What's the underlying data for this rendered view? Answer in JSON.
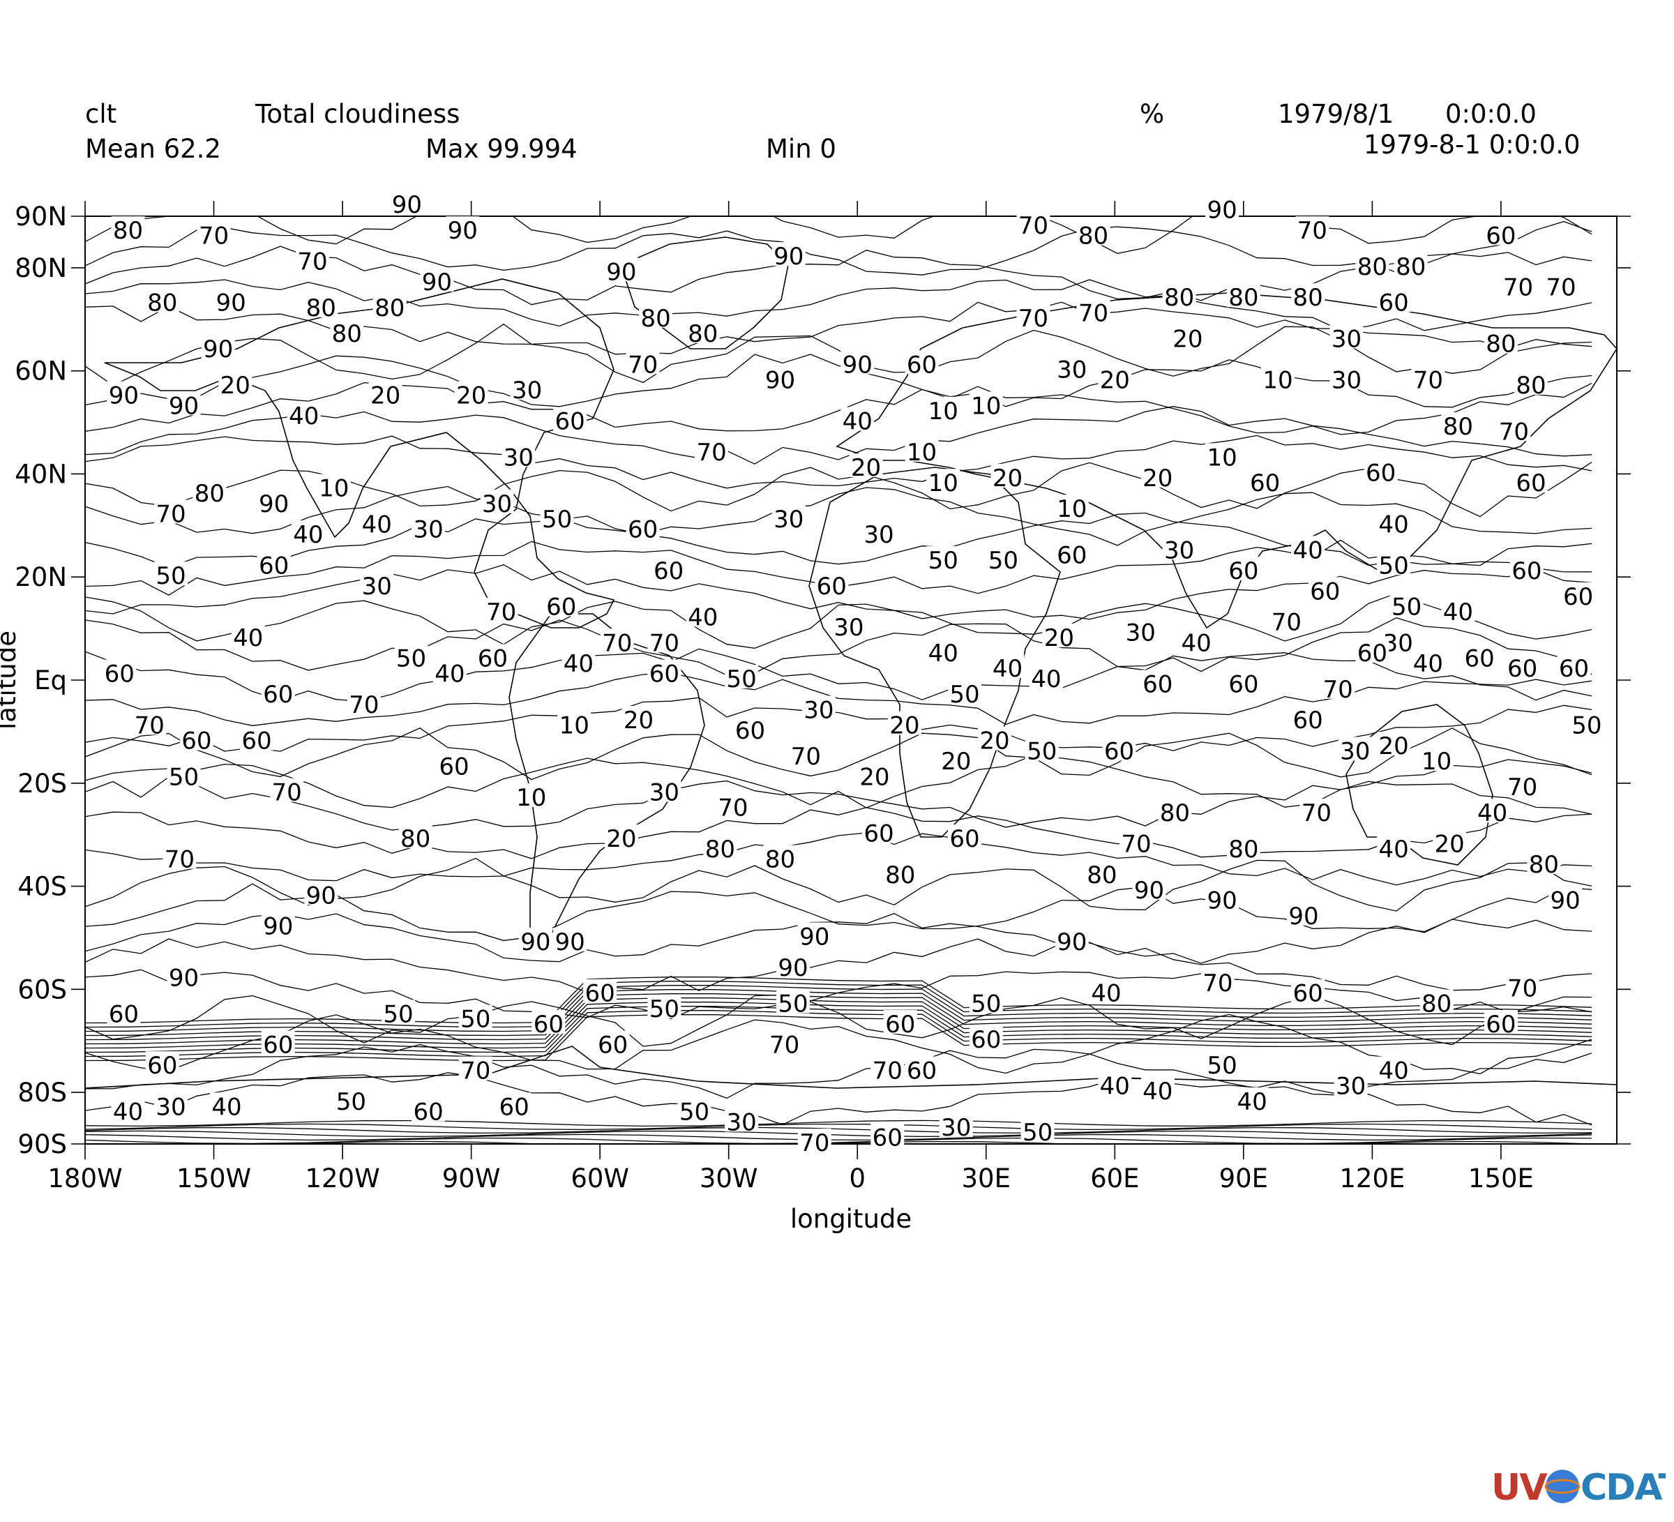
{
  "header": {
    "variable": "clt",
    "long_name": "Total cloudiness",
    "units": "%",
    "date": "1979/8/1",
    "time": "0:0:0.0",
    "datetime": "1979-8-1 0:0:0.0",
    "mean": "Mean 62.2",
    "max": "Max 99.994",
    "min": "Min 0"
  },
  "map": {
    "type": "contour",
    "projection": "cylindrical lat-lon",
    "xlabel": "longitude",
    "ylabel": "latitude",
    "xlim": [
      -180,
      177
    ],
    "ylim": [
      -90,
      90
    ],
    "contour_levels": [
      10,
      20,
      30,
      40,
      50,
      60,
      70,
      80,
      90
    ],
    "x_ticks": [
      {
        "value": -180,
        "label": "180W"
      },
      {
        "value": -150,
        "label": "150W"
      },
      {
        "value": -120,
        "label": "120W"
      },
      {
        "value": -90,
        "label": "90W"
      },
      {
        "value": -60,
        "label": "60W"
      },
      {
        "value": -30,
        "label": "30W"
      },
      {
        "value": 0,
        "label": "0"
      },
      {
        "value": 30,
        "label": "30E"
      },
      {
        "value": 60,
        "label": "60E"
      },
      {
        "value": 90,
        "label": "90E"
      },
      {
        "value": 120,
        "label": "120E"
      },
      {
        "value": 150,
        "label": "150E"
      }
    ],
    "y_ticks": [
      {
        "value": 90,
        "label": "90N"
      },
      {
        "value": 80,
        "label": "80N"
      },
      {
        "value": 60,
        "label": "60N"
      },
      {
        "value": 40,
        "label": "40N"
      },
      {
        "value": 20,
        "label": "20N"
      },
      {
        "value": 0,
        "label": "Eq"
      },
      {
        "value": -20,
        "label": "20S"
      },
      {
        "value": -40,
        "label": "40S"
      },
      {
        "value": -60,
        "label": "60S"
      },
      {
        "value": -80,
        "label": "80S"
      },
      {
        "value": -90,
        "label": "90S"
      }
    ],
    "contour_labels": [
      {
        "lon": -170,
        "lat": 87,
        "text": "80"
      },
      {
        "lon": -150,
        "lat": 86,
        "text": "70"
      },
      {
        "lon": -105,
        "lat": 92,
        "text": "90"
      },
      {
        "lon": -92,
        "lat": 87,
        "text": "90"
      },
      {
        "lon": -127,
        "lat": 81,
        "text": "70"
      },
      {
        "lon": -162,
        "lat": 73,
        "text": "80"
      },
      {
        "lon": -146,
        "lat": 73,
        "text": "90"
      },
      {
        "lon": -125,
        "lat": 72,
        "text": "80"
      },
      {
        "lon": -109,
        "lat": 72,
        "text": "80"
      },
      {
        "lon": -98,
        "lat": 77,
        "text": "90"
      },
      {
        "lon": -119,
        "lat": 67,
        "text": "80"
      },
      {
        "lon": -149,
        "lat": 64,
        "text": "90"
      },
      {
        "lon": -171,
        "lat": 55,
        "text": "90"
      },
      {
        "lon": -157,
        "lat": 53,
        "text": "90"
      },
      {
        "lon": -55,
        "lat": 79,
        "text": "90"
      },
      {
        "lon": -16,
        "lat": 82,
        "text": "90"
      },
      {
        "lon": -47,
        "lat": 70,
        "text": "80"
      },
      {
        "lon": -36,
        "lat": 67,
        "text": "80"
      },
      {
        "lon": -50,
        "lat": 61,
        "text": "70"
      },
      {
        "lon": -18,
        "lat": 58,
        "text": "90"
      },
      {
        "lon": 0,
        "lat": 61,
        "text": "90"
      },
      {
        "lon": 15,
        "lat": 61,
        "text": "60"
      },
      {
        "lon": 41,
        "lat": 70,
        "text": "70"
      },
      {
        "lon": 55,
        "lat": 71,
        "text": "70"
      },
      {
        "lon": 41,
        "lat": 88,
        "text": "70"
      },
      {
        "lon": 55,
        "lat": 86,
        "text": "80"
      },
      {
        "lon": 85,
        "lat": 91,
        "text": "90"
      },
      {
        "lon": 106,
        "lat": 87,
        "text": "70"
      },
      {
        "lon": 150,
        "lat": 86,
        "text": "60"
      },
      {
        "lon": 120,
        "lat": 80,
        "text": "80"
      },
      {
        "lon": 129,
        "lat": 80,
        "text": "80"
      },
      {
        "lon": 75,
        "lat": 74,
        "text": "80"
      },
      {
        "lon": 90,
        "lat": 74,
        "text": "80"
      },
      {
        "lon": 105,
        "lat": 74,
        "text": "80"
      },
      {
        "lon": 125,
        "lat": 73,
        "text": "60"
      },
      {
        "lon": 154,
        "lat": 76,
        "text": "70"
      },
      {
        "lon": 164,
        "lat": 76,
        "text": "70"
      },
      {
        "lon": 77,
        "lat": 66,
        "text": "20"
      },
      {
        "lon": 114,
        "lat": 66,
        "text": "30"
      },
      {
        "lon": 150,
        "lat": 65,
        "text": "80"
      },
      {
        "lon": 50,
        "lat": 60,
        "text": "30"
      },
      {
        "lon": 60,
        "lat": 58,
        "text": "20"
      },
      {
        "lon": 98,
        "lat": 58,
        "text": "10"
      },
      {
        "lon": 114,
        "lat": 58,
        "text": "30"
      },
      {
        "lon": 133,
        "lat": 58,
        "text": "70"
      },
      {
        "lon": 157,
        "lat": 57,
        "text": "80"
      },
      {
        "lon": 20,
        "lat": 52,
        "text": "10"
      },
      {
        "lon": 30,
        "lat": 53,
        "text": "10"
      },
      {
        "lon": 0,
        "lat": 50,
        "text": "40"
      },
      {
        "lon": 140,
        "lat": 49,
        "text": "80"
      },
      {
        "lon": 153,
        "lat": 48,
        "text": "70"
      },
      {
        "lon": -145,
        "lat": 57,
        "text": "20"
      },
      {
        "lon": -129,
        "lat": 51,
        "text": "40"
      },
      {
        "lon": -110,
        "lat": 55,
        "text": "20"
      },
      {
        "lon": -90,
        "lat": 55,
        "text": "20"
      },
      {
        "lon": -77,
        "lat": 56,
        "text": "30"
      },
      {
        "lon": -67,
        "lat": 50,
        "text": "60"
      },
      {
        "lon": -79,
        "lat": 43,
        "text": "30"
      },
      {
        "lon": -34,
        "lat": 44,
        "text": "70"
      },
      {
        "lon": 15,
        "lat": 44,
        "text": "10"
      },
      {
        "lon": 2,
        "lat": 41,
        "text": "20"
      },
      {
        "lon": 20,
        "lat": 38,
        "text": "10"
      },
      {
        "lon": 35,
        "lat": 39,
        "text": "20"
      },
      {
        "lon": 70,
        "lat": 39,
        "text": "20"
      },
      {
        "lon": 85,
        "lat": 43,
        "text": "10"
      },
      {
        "lon": 95,
        "lat": 38,
        "text": "60"
      },
      {
        "lon": 122,
        "lat": 40,
        "text": "60"
      },
      {
        "lon": 157,
        "lat": 38,
        "text": "60"
      },
      {
        "lon": -160,
        "lat": 32,
        "text": "70"
      },
      {
        "lon": -151,
        "lat": 36,
        "text": "80"
      },
      {
        "lon": -136,
        "lat": 34,
        "text": "90"
      },
      {
        "lon": -122,
        "lat": 37,
        "text": "10"
      },
      {
        "lon": -128,
        "lat": 28,
        "text": "40"
      },
      {
        "lon": -112,
        "lat": 30,
        "text": "40"
      },
      {
        "lon": -100,
        "lat": 29,
        "text": "30"
      },
      {
        "lon": -84,
        "lat": 34,
        "text": "30"
      },
      {
        "lon": -70,
        "lat": 31,
        "text": "50"
      },
      {
        "lon": -50,
        "lat": 29,
        "text": "60"
      },
      {
        "lon": -16,
        "lat": 31,
        "text": "30"
      },
      {
        "lon": 5,
        "lat": 28,
        "text": "30"
      },
      {
        "lon": 20,
        "lat": 23,
        "text": "50"
      },
      {
        "lon": 34,
        "lat": 23,
        "text": "50"
      },
      {
        "lon": 50,
        "lat": 24,
        "text": "60"
      },
      {
        "lon": 50,
        "lat": 33,
        "text": "10"
      },
      {
        "lon": 75,
        "lat": 25,
        "text": "30"
      },
      {
        "lon": 105,
        "lat": 25,
        "text": "40"
      },
      {
        "lon": 125,
        "lat": 30,
        "text": "40"
      },
      {
        "lon": 125,
        "lat": 22,
        "text": "50"
      },
      {
        "lon": -160,
        "lat": 20,
        "text": "50"
      },
      {
        "lon": -136,
        "lat": 22,
        "text": "60"
      },
      {
        "lon": -112,
        "lat": 18,
        "text": "30"
      },
      {
        "lon": -44,
        "lat": 21,
        "text": "60"
      },
      {
        "lon": -6,
        "lat": 18,
        "text": "60"
      },
      {
        "lon": 90,
        "lat": 21,
        "text": "60"
      },
      {
        "lon": 109,
        "lat": 17,
        "text": "60"
      },
      {
        "lon": 128,
        "lat": 14,
        "text": "50"
      },
      {
        "lon": 140,
        "lat": 13,
        "text": "40"
      },
      {
        "lon": 156,
        "lat": 21,
        "text": "60"
      },
      {
        "lon": 168,
        "lat": 16,
        "text": "60"
      },
      {
        "lon": -69,
        "lat": 14,
        "text": "60"
      },
      {
        "lon": -36,
        "lat": 12,
        "text": "40"
      },
      {
        "lon": -2,
        "lat": 10,
        "text": "30"
      },
      {
        "lon": 100,
        "lat": 11,
        "text": "70"
      },
      {
        "lon": -142,
        "lat": 8,
        "text": "40"
      },
      {
        "lon": -83,
        "lat": 13,
        "text": "70"
      },
      {
        "lon": -56,
        "lat": 7,
        "text": "70"
      },
      {
        "lon": -45,
        "lat": 7,
        "text": "70"
      },
      {
        "lon": 47,
        "lat": 8,
        "text": "20"
      },
      {
        "lon": 66,
        "lat": 9,
        "text": "30"
      },
      {
        "lon": 79,
        "lat": 7,
        "text": "40"
      },
      {
        "lon": 126,
        "lat": 7,
        "text": "30"
      },
      {
        "lon": 120,
        "lat": 5,
        "text": "60"
      },
      {
        "lon": -104,
        "lat": 4,
        "text": "50"
      },
      {
        "lon": -85,
        "lat": 4,
        "text": "60"
      },
      {
        "lon": -65,
        "lat": 3,
        "text": "40"
      },
      {
        "lon": 20,
        "lat": 5,
        "text": "40"
      },
      {
        "lon": 35,
        "lat": 2,
        "text": "40"
      },
      {
        "lon": 44,
        "lat": 0,
        "text": "40"
      },
      {
        "lon": 133,
        "lat": 3,
        "text": "40"
      },
      {
        "lon": 145,
        "lat": 4,
        "text": "60"
      },
      {
        "lon": 155,
        "lat": 2,
        "text": "60"
      },
      {
        "lon": 167,
        "lat": 2,
        "text": "60"
      },
      {
        "lon": -172,
        "lat": 1,
        "text": "60"
      },
      {
        "lon": -95,
        "lat": 1,
        "text": "40"
      },
      {
        "lon": -45,
        "lat": 1,
        "text": "60"
      },
      {
        "lon": -27,
        "lat": 0,
        "text": "50"
      },
      {
        "lon": 70,
        "lat": -1,
        "text": "60"
      },
      {
        "lon": 90,
        "lat": -1,
        "text": "60"
      },
      {
        "lon": -135,
        "lat": -3,
        "text": "60"
      },
      {
        "lon": -115,
        "lat": -5,
        "text": "70"
      },
      {
        "lon": 25,
        "lat": -3,
        "text": "50"
      },
      {
        "lon": 112,
        "lat": -2,
        "text": "70"
      },
      {
        "lon": 105,
        "lat": -8,
        "text": "60"
      },
      {
        "lon": -66,
        "lat": -9,
        "text": "10"
      },
      {
        "lon": -51,
        "lat": -8,
        "text": "20"
      },
      {
        "lon": -9,
        "lat": -6,
        "text": "30"
      },
      {
        "lon": 11,
        "lat": -9,
        "text": "20"
      },
      {
        "lon": 32,
        "lat": -12,
        "text": "20"
      },
      {
        "lon": 170,
        "lat": -9,
        "text": "50"
      },
      {
        "lon": -165,
        "lat": -9,
        "text": "70"
      },
      {
        "lon": -154,
        "lat": -12,
        "text": "60"
      },
      {
        "lon": -140,
        "lat": -12,
        "text": "60"
      },
      {
        "lon": -25,
        "lat": -10,
        "text": "60"
      },
      {
        "lon": -12,
        "lat": -15,
        "text": "70"
      },
      {
        "lon": 43,
        "lat": -14,
        "text": "50"
      },
      {
        "lon": 61,
        "lat": -14,
        "text": "60"
      },
      {
        "lon": 116,
        "lat": -14,
        "text": "30"
      },
      {
        "lon": 125,
        "lat": -13,
        "text": "20"
      },
      {
        "lon": 135,
        "lat": -16,
        "text": "10"
      },
      {
        "lon": 23,
        "lat": -16,
        "text": "20"
      },
      {
        "lon": -157,
        "lat": -19,
        "text": "50"
      },
      {
        "lon": -94,
        "lat": -17,
        "text": "60"
      },
      {
        "lon": 4,
        "lat": -19,
        "text": "20"
      },
      {
        "lon": 155,
        "lat": -21,
        "text": "70"
      },
      {
        "lon": -133,
        "lat": -22,
        "text": "70"
      },
      {
        "lon": -76,
        "lat": -23,
        "text": "10"
      },
      {
        "lon": -45,
        "lat": -22,
        "text": "30"
      },
      {
        "lon": -29,
        "lat": -25,
        "text": "70"
      },
      {
        "lon": 74,
        "lat": -26,
        "text": "80"
      },
      {
        "lon": 107,
        "lat": -26,
        "text": "70"
      },
      {
        "lon": 148,
        "lat": -26,
        "text": "40"
      },
      {
        "lon": -103,
        "lat": -31,
        "text": "80"
      },
      {
        "lon": -55,
        "lat": -31,
        "text": "20"
      },
      {
        "lon": 5,
        "lat": -30,
        "text": "60"
      },
      {
        "lon": 25,
        "lat": -31,
        "text": "60"
      },
      {
        "lon": 65,
        "lat": -32,
        "text": "70"
      },
      {
        "lon": 90,
        "lat": -33,
        "text": "80"
      },
      {
        "lon": 125,
        "lat": -33,
        "text": "40"
      },
      {
        "lon": 138,
        "lat": -32,
        "text": "20"
      },
      {
        "lon": -158,
        "lat": -35,
        "text": "70"
      },
      {
        "lon": -32,
        "lat": -33,
        "text": "80"
      },
      {
        "lon": -18,
        "lat": -35,
        "text": "80"
      },
      {
        "lon": 10,
        "lat": -38,
        "text": "80"
      },
      {
        "lon": 57,
        "lat": -38,
        "text": "80"
      },
      {
        "lon": 160,
        "lat": -36,
        "text": "80"
      },
      {
        "lon": -125,
        "lat": -42,
        "text": "90"
      },
      {
        "lon": 68,
        "lat": -41,
        "text": "90"
      },
      {
        "lon": 85,
        "lat": -43,
        "text": "90"
      },
      {
        "lon": 104,
        "lat": -46,
        "text": "90"
      },
      {
        "lon": 165,
        "lat": -43,
        "text": "90"
      },
      {
        "lon": -135,
        "lat": -48,
        "text": "90"
      },
      {
        "lon": -10,
        "lat": -50,
        "text": "90"
      },
      {
        "lon": 50,
        "lat": -51,
        "text": "90"
      },
      {
        "lon": -75,
        "lat": -51,
        "text": "90"
      },
      {
        "lon": -67,
        "lat": -51,
        "text": "90"
      },
      {
        "lon": -157,
        "lat": -58,
        "text": "90"
      },
      {
        "lon": -15,
        "lat": -56,
        "text": "90"
      },
      {
        "lon": 84,
        "lat": -59,
        "text": "70"
      },
      {
        "lon": 58,
        "lat": -61,
        "text": "40"
      },
      {
        "lon": 105,
        "lat": -61,
        "text": "60"
      },
      {
        "lon": -60,
        "lat": -61,
        "text": "60"
      },
      {
        "lon": 155,
        "lat": -60,
        "text": "70"
      },
      {
        "lon": -45,
        "lat": -64,
        "text": "50"
      },
      {
        "lon": -15,
        "lat": -63,
        "text": "50"
      },
      {
        "lon": 30,
        "lat": -63,
        "text": "50"
      },
      {
        "lon": 135,
        "lat": -63,
        "text": "80"
      },
      {
        "lon": -171,
        "lat": -65,
        "text": "60"
      },
      {
        "lon": -107,
        "lat": -65,
        "text": "50"
      },
      {
        "lon": -89,
        "lat": -66,
        "text": "50"
      },
      {
        "lon": -72,
        "lat": -67,
        "text": "60"
      },
      {
        "lon": 10,
        "lat": -67,
        "text": "60"
      },
      {
        "lon": 150,
        "lat": -67,
        "text": "60"
      },
      {
        "lon": -135,
        "lat": -71,
        "text": "60"
      },
      {
        "lon": -57,
        "lat": -71,
        "text": "60"
      },
      {
        "lon": -17,
        "lat": -71,
        "text": "70"
      },
      {
        "lon": 30,
        "lat": -70,
        "text": "60"
      },
      {
        "lon": -162,
        "lat": -75,
        "text": "60"
      },
      {
        "lon": -89,
        "lat": -76,
        "text": "70"
      },
      {
        "lon": 7,
        "lat": -76,
        "text": "70"
      },
      {
        "lon": 15,
        "lat": -76,
        "text": "60"
      },
      {
        "lon": 85,
        "lat": -75,
        "text": "50"
      },
      {
        "lon": 125,
        "lat": -76,
        "text": "40"
      },
      {
        "lon": 115,
        "lat": -79,
        "text": "30"
      },
      {
        "lon": 60,
        "lat": -79,
        "text": "40"
      },
      {
        "lon": 70,
        "lat": -80,
        "text": "40"
      },
      {
        "lon": 92,
        "lat": -82,
        "text": "40"
      },
      {
        "lon": -170,
        "lat": -84,
        "text": "40"
      },
      {
        "lon": -160,
        "lat": -83,
        "text": "30"
      },
      {
        "lon": -147,
        "lat": -83,
        "text": "40"
      },
      {
        "lon": -118,
        "lat": -82,
        "text": "50"
      },
      {
        "lon": -100,
        "lat": -84,
        "text": "60"
      },
      {
        "lon": -80,
        "lat": -83,
        "text": "60"
      },
      {
        "lon": -38,
        "lat": -84,
        "text": "50"
      },
      {
        "lon": -27,
        "lat": -86,
        "text": "30"
      },
      {
        "lon": 23,
        "lat": -87,
        "text": "30"
      },
      {
        "lon": 42,
        "lat": -88,
        "text": "50"
      },
      {
        "lon": -10,
        "lat": -90,
        "text": "70"
      },
      {
        "lon": 7,
        "lat": -89,
        "text": "60"
      }
    ]
  },
  "logo": {
    "text_uv": "UV",
    "text_cdat": "CDAT",
    "colors": [
      "#c0392b",
      "#e67e22",
      "#27ae60",
      "#2980b9",
      "#8e44ad"
    ]
  }
}
